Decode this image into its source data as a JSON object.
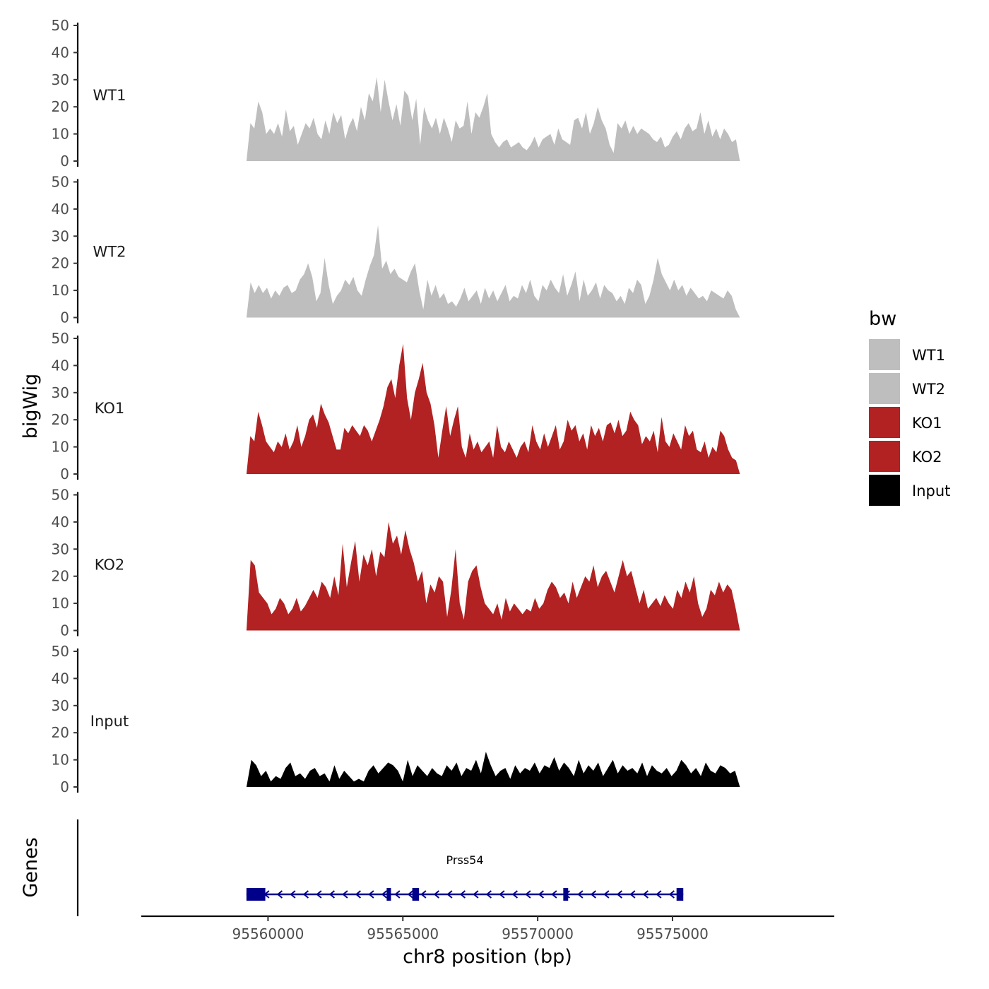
{
  "chart_data": {
    "type": "area",
    "title": "",
    "xlabel": "chr8 position (bp)",
    "ylabel": "bigWig",
    "genes_label": "Genes",
    "xlim": [
      95555300,
      95581000
    ],
    "x_ticks": [
      95560000,
      95565000,
      95570000,
      95575000
    ],
    "x_tick_labels": [
      "95560000",
      "95565000",
      "95570000",
      "95575000"
    ],
    "y_ticks": [
      0,
      10,
      20,
      30,
      40,
      50
    ],
    "y_tick_labels": [
      "0",
      "10",
      "20",
      "30",
      "40",
      "50"
    ],
    "ylim": [
      0,
      50
    ],
    "data_start": 95559200,
    "data_end": 95577500,
    "legend": {
      "title": "bw",
      "position": "right",
      "entries": [
        {
          "label": "WT1",
          "color": "#bebebe"
        },
        {
          "label": "WT2",
          "color": "#bebebe"
        },
        {
          "label": "KO1",
          "color": "#b22222"
        },
        {
          "label": "KO2",
          "color": "#b22222"
        },
        {
          "label": "Input",
          "color": "#000000"
        }
      ]
    },
    "series": [
      {
        "name": "WT1",
        "color": "#bebebe",
        "values": [
          0,
          14,
          12,
          22,
          18,
          10,
          12,
          10,
          14,
          9,
          19,
          11,
          13,
          6,
          10,
          14,
          12,
          16,
          10,
          8,
          15,
          10,
          18,
          14,
          17,
          8,
          13,
          16,
          11,
          20,
          15,
          25,
          22,
          31,
          18,
          30,
          22,
          15,
          21,
          13,
          26,
          24,
          15,
          23,
          6,
          20,
          15,
          12,
          16,
          10,
          16,
          12,
          7,
          15,
          12,
          13,
          22,
          10,
          18,
          16,
          20,
          25,
          10,
          7,
          5,
          7,
          8,
          5,
          6,
          7,
          5,
          4,
          6,
          9,
          5,
          8,
          9,
          10,
          6,
          12,
          8,
          7,
          6,
          15,
          16,
          12,
          18,
          10,
          14,
          20,
          15,
          12,
          6,
          3,
          14,
          12,
          15,
          10,
          13,
          10,
          12,
          11,
          10,
          8,
          7,
          9,
          5,
          6,
          9,
          11,
          8,
          12,
          14,
          11,
          12,
          18,
          10,
          15,
          9,
          12,
          8,
          12,
          10,
          7,
          8,
          0
        ]
      },
      {
        "name": "WT2",
        "color": "#bebebe",
        "values": [
          0,
          13,
          9,
          12,
          9,
          11,
          7,
          10,
          8,
          11,
          12,
          9,
          10,
          14,
          16,
          20,
          15,
          6,
          9,
          22,
          12,
          5,
          8,
          10,
          14,
          12,
          15,
          10,
          8,
          14,
          19,
          23,
          34,
          18,
          21,
          16,
          18,
          15,
          14,
          13,
          17,
          20,
          10,
          3,
          14,
          8,
          12,
          7,
          9,
          5,
          6,
          4,
          7,
          11,
          6,
          8,
          10,
          5,
          11,
          7,
          10,
          6,
          9,
          12,
          6,
          8,
          7,
          12,
          9,
          14,
          8,
          6,
          12,
          10,
          14,
          11,
          9,
          16,
          8,
          12,
          17,
          6,
          14,
          8,
          10,
          13,
          7,
          12,
          10,
          9,
          6,
          8,
          5,
          11,
          9,
          14,
          12,
          5,
          8,
          14,
          22,
          16,
          13,
          10,
          14,
          10,
          12,
          8,
          11,
          9,
          7,
          8,
          6,
          10,
          9,
          8,
          7,
          10,
          8,
          3,
          0
        ]
      },
      {
        "name": "KO1",
        "color": "#b22222",
        "values": [
          0,
          14,
          12,
          23,
          18,
          12,
          10,
          8,
          12,
          10,
          15,
          9,
          12,
          18,
          10,
          14,
          20,
          22,
          17,
          26,
          22,
          19,
          14,
          9,
          9,
          17,
          15,
          18,
          16,
          14,
          18,
          16,
          12,
          16,
          20,
          25,
          32,
          35,
          28,
          40,
          48,
          28,
          20,
          30,
          35,
          41,
          30,
          26,
          18,
          6,
          16,
          25,
          14,
          20,
          25,
          10,
          6,
          15,
          9,
          12,
          8,
          10,
          12,
          6,
          18,
          10,
          8,
          12,
          9,
          6,
          10,
          12,
          8,
          18,
          12,
          9,
          15,
          10,
          14,
          18,
          9,
          12,
          20,
          16,
          18,
          12,
          15,
          9,
          18,
          14,
          17,
          12,
          18,
          19,
          15,
          20,
          14,
          16,
          23,
          20,
          18,
          11,
          14,
          12,
          16,
          8,
          21,
          12,
          10,
          15,
          12,
          9,
          18,
          14,
          16,
          9,
          8,
          12,
          6,
          10,
          8,
          16,
          14,
          9,
          6,
          5,
          0
        ]
      },
      {
        "name": "KO2",
        "color": "#b22222",
        "values": [
          0,
          26,
          24,
          14,
          12,
          10,
          6,
          8,
          12,
          10,
          6,
          8,
          12,
          7,
          9,
          12,
          15,
          12,
          18,
          16,
          12,
          20,
          13,
          32,
          16,
          25,
          33,
          18,
          28,
          24,
          30,
          20,
          29,
          27,
          40,
          32,
          35,
          28,
          37,
          30,
          25,
          18,
          22,
          10,
          17,
          14,
          20,
          18,
          5,
          15,
          30,
          10,
          4,
          18,
          22,
          24,
          16,
          10,
          8,
          6,
          10,
          4,
          12,
          7,
          10,
          8,
          6,
          8,
          7,
          12,
          8,
          10,
          15,
          18,
          16,
          12,
          14,
          10,
          18,
          12,
          16,
          20,
          18,
          24,
          16,
          20,
          22,
          18,
          14,
          20,
          26,
          20,
          22,
          16,
          10,
          15,
          8,
          10,
          12,
          9,
          13,
          10,
          8,
          15,
          12,
          18,
          14,
          20,
          10,
          5,
          8,
          15,
          13,
          18,
          14,
          17,
          15,
          8,
          0
        ]
      },
      {
        "name": "Input",
        "color": "#000000",
        "values": [
          0,
          10,
          8,
          4,
          6,
          2,
          4,
          3,
          7,
          9,
          4,
          5,
          3,
          6,
          7,
          4,
          5,
          2,
          8,
          3,
          6,
          4,
          2,
          3,
          2,
          6,
          8,
          5,
          7,
          9,
          8,
          6,
          2,
          10,
          4,
          8,
          6,
          4,
          7,
          5,
          4,
          8,
          6,
          9,
          4,
          7,
          6,
          10,
          5,
          13,
          8,
          4,
          6,
          7,
          3,
          8,
          5,
          7,
          6,
          9,
          5,
          8,
          7,
          11,
          6,
          9,
          7,
          4,
          10,
          5,
          8,
          6,
          9,
          4,
          7,
          10,
          5,
          8,
          6,
          7,
          5,
          9,
          4,
          8,
          6,
          5,
          7,
          4,
          6,
          10,
          8,
          5,
          7,
          4,
          9,
          6,
          5,
          8,
          7,
          5,
          6,
          0
        ]
      }
    ],
    "genes": [
      {
        "name": "Prss54",
        "strand": "-",
        "start": 95559200,
        "end": 95575400,
        "exons": [
          [
            95559200,
            95559900
          ],
          [
            95564400,
            95564560
          ],
          [
            95565350,
            95565600
          ],
          [
            95570950,
            95571130
          ],
          [
            95575150,
            95575400
          ]
        ]
      }
    ]
  }
}
